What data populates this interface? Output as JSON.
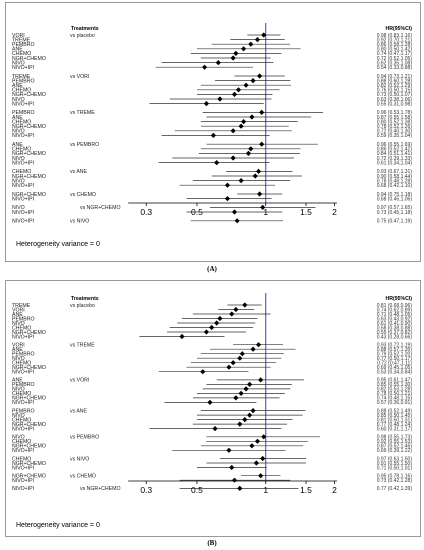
{
  "chart_data": [
    {
      "type": "forest",
      "panel_label": "(A)",
      "header_left": "Treatments",
      "header_right": "HR(95%CI)",
      "footer": "Heterogeneity variance = 0",
      "x_scale": "log",
      "xlim": [
        0.2,
        2.2
      ],
      "x_ticks": [
        "0.3",
        "0.5",
        "1",
        "1.5",
        "2"
      ],
      "reference_line": 1,
      "groups": [
        {
          "comparator": "vs placebo",
          "rows": [
            {
              "label": "VORI",
              "hr": 0.98,
              "lo": 0.83,
              "hi": 1.16,
              "text": "0.98 (0.83,1.16)"
            },
            {
              "label": "TREME",
              "hr": 0.92,
              "lo": 0.7,
              "hi": 1.21,
              "text": "0.92 (0.70,1.21)"
            },
            {
              "label": "PEMBRO",
              "hr": 0.86,
              "lo": 0.58,
              "hi": 1.28,
              "text": "0.86 (0.58,1.28)"
            },
            {
              "label": "ANE",
              "hr": 0.8,
              "lo": 0.5,
              "hi": 1.42,
              "text": "0.80 (0.50,1.42)"
            },
            {
              "label": "CHEMO",
              "hr": 0.74,
              "lo": 0.47,
              "hi": 1.17,
              "text": "0.74 (0.47,1.17)"
            },
            {
              "label": "NGR+CHEMO",
              "hr": 0.72,
              "lo": 0.52,
              "hi": 1.05,
              "text": "0.72 (0.52,1.05)"
            },
            {
              "label": "NIVO",
              "hr": 0.62,
              "lo": 0.35,
              "hi": 1.08,
              "text": "0.62 (0.35,1.08)"
            },
            {
              "label": "NIVO+IPI",
              "hr": 0.54,
              "lo": 0.33,
              "hi": 0.88,
              "text": "0.54 (0.33,0.88)"
            }
          ]
        },
        {
          "comparator": "vs VORI",
          "rows": [
            {
              "label": "TREME",
              "hr": 0.94,
              "lo": 0.73,
              "hi": 1.21,
              "text": "0.94 (0.73,1.21)"
            },
            {
              "label": "PEMBRO",
              "hr": 0.88,
              "lo": 0.6,
              "hi": 1.28,
              "text": "0.88 (0.60,1.28)"
            },
            {
              "label": "ANE",
              "hr": 0.82,
              "lo": 0.52,
              "hi": 1.29,
              "text": "0.82 (0.52,1.29)"
            },
            {
              "label": "CHEMO",
              "hr": 0.76,
              "lo": 0.5,
              "hi": 1.15,
              "text": "0.76 (0.50,1.15)"
            },
            {
              "label": "NGR+CHEMO",
              "hr": 0.73,
              "lo": 0.5,
              "hi": 1.07,
              "text": "0.73 (0.50,1.07)"
            },
            {
              "label": "NIVO",
              "hr": 0.63,
              "lo": 0.38,
              "hi": 1.06,
              "text": "0.63 (0.38,1.06)"
            },
            {
              "label": "NIVO+IPI",
              "hr": 0.55,
              "lo": 0.31,
              "hi": 0.98,
              "text": "0.55 (0.31,0.98)"
            }
          ]
        },
        {
          "comparator": "vs TREME",
          "rows": [
            {
              "label": "PEMBRO",
              "hr": 0.96,
              "lo": 0.53,
              "hi": 1.78,
              "text": "0.96 (0.53,1.78)"
            },
            {
              "label": "ANE",
              "hr": 0.87,
              "lo": 0.55,
              "hi": 1.58,
              "text": "0.87 (0.55,1.58)"
            },
            {
              "label": "CHEMO",
              "hr": 0.8,
              "lo": 0.52,
              "hi": 1.38,
              "text": "0.80 (0.52,1.38)"
            },
            {
              "label": "NGR+CHEMO",
              "hr": 0.78,
              "lo": 0.52,
              "hi": 1.26,
              "text": "0.78 (0.52,1.26)"
            },
            {
              "label": "NIVO",
              "hr": 0.72,
              "lo": 0.4,
              "hi": 1.3,
              "text": "0.72 (0.40,1.30)"
            },
            {
              "label": "NIVO+IPI",
              "hr": 0.59,
              "lo": 0.35,
              "hi": 1.04,
              "text": "0.59 (0.35,1.04)"
            }
          ]
        },
        {
          "comparator": "vs PEMBRO",
          "rows": [
            {
              "label": "ANE",
              "hr": 0.96,
              "lo": 0.55,
              "hi": 1.69,
              "text": "0.96 (0.55,1.69)"
            },
            {
              "label": "CHEMO",
              "hr": 0.86,
              "lo": 0.52,
              "hi": 1.42,
              "text": "0.86 (0.52,1.42)"
            },
            {
              "label": "NGR+CHEMO",
              "hr": 0.84,
              "lo": 0.51,
              "hi": 1.41,
              "text": "0.84 (0.51,1.41)"
            },
            {
              "label": "NIVO",
              "hr": 0.72,
              "lo": 0.39,
              "hi": 1.33,
              "text": "0.72 (0.39,1.33)"
            },
            {
              "label": "NIVO+IPI",
              "hr": 0.61,
              "lo": 0.34,
              "hi": 1.04,
              "text": "0.61 (0.34,1.04)"
            }
          ]
        },
        {
          "comparator": "vs ANE",
          "rows": [
            {
              "label": "CHEMO",
              "hr": 0.93,
              "lo": 0.67,
              "hi": 1.31,
              "text": "0.93 (0.67,1.31)"
            },
            {
              "label": "NGR+CHEMO",
              "hr": 0.9,
              "lo": 0.58,
              "hi": 1.44,
              "text": "0.90 (0.58,1.44)"
            },
            {
              "label": "NIVO",
              "hr": 0.78,
              "lo": 0.48,
              "hi": 1.28,
              "text": "0.78 (0.48,1.28)"
            },
            {
              "label": "NIVO+IPI",
              "hr": 0.68,
              "lo": 0.42,
              "hi": 1.1,
              "text": "0.68 (0.42,1.10)"
            }
          ]
        },
        {
          "comparator": "vs CHEMO",
          "rows": [
            {
              "label": "NGR+CHEMO",
              "hr": 0.94,
              "lo": 0.75,
              "hi": 1.18,
              "text": "0.94 (0.75,1.18)"
            },
            {
              "label": "NIVO+IPI",
              "hr": 0.68,
              "lo": 0.45,
              "hi": 1.06,
              "text": "0.68 (0.45,1.06)"
            }
          ]
        },
        {
          "comparator": "vs NGR+CHEMO",
          "rows": [
            {
              "label": "NIVO",
              "hr": 0.97,
              "lo": 0.57,
              "hi": 1.65,
              "text": "0.97 (0.57,1.65)"
            },
            {
              "label": "NIVO+IPI",
              "hr": 0.73,
              "lo": 0.45,
              "hi": 1.18,
              "text": "0.73 (0.45,1.18)"
            }
          ]
        },
        {
          "comparator": "vs NIVO",
          "rows": [
            {
              "label": "NIVO+IPI",
              "hr": 0.75,
              "lo": 0.47,
              "hi": 1.19,
              "text": "0.75 (0.47,1.19)"
            }
          ]
        }
      ]
    },
    {
      "type": "forest",
      "panel_label": "(B)",
      "header_left": "Treatments",
      "header_right": "HR(95%CI)",
      "footer": "Heterogeneity variance = 0",
      "x_scale": "log",
      "xlim": [
        0.2,
        2.2
      ],
      "x_ticks": [
        "0.3",
        "0.5",
        "1",
        "1.5",
        "2"
      ],
      "reference_line": 1,
      "groups": [
        {
          "comparator": "vs placebo",
          "rows": [
            {
              "label": "TREME",
              "hr": 0.81,
              "lo": 0.68,
              "hi": 0.96,
              "text": "0.81 (0.68,0.96)"
            },
            {
              "label": "VORI",
              "hr": 0.74,
              "lo": 0.62,
              "hi": 0.89,
              "text": "0.74 (0.62,0.89)"
            },
            {
              "label": "ANE",
              "hr": 0.71,
              "lo": 0.48,
              "hi": 1.05,
              "text": "0.71 (0.48,1.05)"
            },
            {
              "label": "PEMBRO",
              "hr": 0.63,
              "lo": 0.43,
              "hi": 0.92,
              "text": "0.63 (0.43,0.92)"
            },
            {
              "label": "NIVO",
              "hr": 0.61,
              "lo": 0.41,
              "hi": 0.9,
              "text": "0.61 (0.41,0.90)"
            },
            {
              "label": "CHEMO",
              "hr": 0.58,
              "lo": 0.38,
              "hi": 0.88,
              "text": "0.58 (0.38,0.88)"
            },
            {
              "label": "NGR+CHEMO",
              "hr": 0.55,
              "lo": 0.37,
              "hi": 0.82,
              "text": "0.55 (0.37,0.82)"
            },
            {
              "label": "NIVO+IPI",
              "hr": 0.43,
              "lo": 0.28,
              "hi": 0.66,
              "text": "0.43 (0.28,0.66)"
            }
          ]
        },
        {
          "comparator": "vs TREME",
          "rows": [
            {
              "label": "VORI",
              "hr": 0.93,
              "lo": 0.72,
              "hi": 1.19,
              "text": "0.93 (0.72,1.19)"
            },
            {
              "label": "ANE",
              "hr": 0.88,
              "lo": 0.57,
              "hi": 1.35,
              "text": "0.88 (0.57,1.35)"
            },
            {
              "label": "PEMBRO",
              "hr": 0.79,
              "lo": 0.52,
              "hi": 1.2,
              "text": "0.79 (0.52,1.20)"
            },
            {
              "label": "NIVO",
              "hr": 0.77,
              "lo": 0.5,
              "hi": 1.17,
              "text": "0.77 (0.50,1.17)"
            },
            {
              "label": "CHEMO",
              "hr": 0.72,
              "lo": 0.47,
              "hi": 1.11,
              "text": "0.72 (0.47,1.11)"
            },
            {
              "label": "NGR+CHEMO",
              "hr": 0.69,
              "lo": 0.45,
              "hi": 1.05,
              "text": "0.69 (0.45,1.05)"
            },
            {
              "label": "NIVO+IPI",
              "hr": 0.53,
              "lo": 0.34,
              "hi": 0.84,
              "text": "0.53 (0.34,0.84)"
            }
          ]
        },
        {
          "comparator": "vs VORI",
          "rows": [
            {
              "label": "ANE",
              "hr": 0.95,
              "lo": 0.61,
              "hi": 1.47,
              "text": "0.95 (0.61,1.47)"
            },
            {
              "label": "PEMBRO",
              "hr": 0.85,
              "lo": 0.55,
              "hi": 1.3,
              "text": "0.85 (0.55,1.30)"
            },
            {
              "label": "NIVO",
              "hr": 0.82,
              "lo": 0.53,
              "hi": 1.28,
              "text": "0.82 (0.53,1.28)"
            },
            {
              "label": "CHEMO",
              "hr": 0.78,
              "lo": 0.5,
              "hi": 1.21,
              "text": "0.78 (0.50,1.21)"
            },
            {
              "label": "NGR+CHEMO",
              "hr": 0.74,
              "lo": 0.48,
              "hi": 1.15,
              "text": "0.74 (0.48,1.15)"
            },
            {
              "label": "NIVO+IPI",
              "hr": 0.57,
              "lo": 0.36,
              "hi": 0.91,
              "text": "0.57 (0.36,0.91)"
            }
          ]
        },
        {
          "comparator": "vs ANE",
          "rows": [
            {
              "label": "PEMBRO",
              "hr": 0.88,
              "lo": 0.52,
              "hi": 1.49,
              "text": "0.88 (0.52,1.49)"
            },
            {
              "label": "NIVO",
              "hr": 0.85,
              "lo": 0.5,
              "hi": 1.45,
              "text": "0.85 (0.50,1.45)"
            },
            {
              "label": "CHEMO",
              "hr": 0.81,
              "lo": 0.5,
              "hi": 1.31,
              "text": "0.81 (0.50,1.31)"
            },
            {
              "label": "NGR+CHEMO",
              "hr": 0.77,
              "lo": 0.48,
              "hi": 1.24,
              "text": "0.77 (0.48,1.24)"
            },
            {
              "label": "NIVO+IPI",
              "hr": 0.6,
              "lo": 0.31,
              "hi": 1.17,
              "text": "0.60 (0.31,1.17)"
            }
          ]
        },
        {
          "comparator": "vs PEMBRO",
          "rows": [
            {
              "label": "NIVO",
              "hr": 0.98,
              "lo": 0.55,
              "hi": 1.73,
              "text": "0.98 (0.55,1.73)"
            },
            {
              "label": "CHEMO",
              "hr": 0.92,
              "lo": 0.55,
              "hi": 1.53,
              "text": "0.92 (0.55,1.53)"
            },
            {
              "label": "NGR+CHEMO",
              "hr": 0.87,
              "lo": 0.52,
              "hi": 1.46,
              "text": "0.87 (0.52,1.46)"
            },
            {
              "label": "NIVO+IPI",
              "hr": 0.69,
              "lo": 0.39,
              "hi": 1.22,
              "text": "0.69 (0.39,1.22)"
            }
          ]
        },
        {
          "comparator": "vs NIVO",
          "rows": [
            {
              "label": "CHEMO",
              "hr": 0.97,
              "lo": 0.63,
              "hi": 1.5,
              "text": "0.97 (0.63,1.50)"
            },
            {
              "label": "NGR+CHEMO",
              "hr": 0.91,
              "lo": 0.55,
              "hi": 1.5,
              "text": "0.91 (0.55,1.50)"
            },
            {
              "label": "NIVO+IPI",
              "hr": 0.71,
              "lo": 0.5,
              "hi": 1.01,
              "text": "0.71 (0.50,1.01)"
            }
          ]
        },
        {
          "comparator": "vs CHEMO",
          "rows": [
            {
              "label": "NGR+CHEMO",
              "hr": 0.95,
              "lo": 0.78,
              "hi": 1.16,
              "text": "0.95 (0.78,1.16)"
            },
            {
              "label": "NIVO+IPI",
              "hr": 0.73,
              "lo": 0.42,
              "hi": 1.28,
              "text": "0.73 (0.42,1.28)"
            }
          ]
        },
        {
          "comparator": "vs NGR+CHEMO",
          "rows": [
            {
              "label": "NIVO+IPI",
              "hr": 0.77,
              "lo": 0.42,
              "hi": 1.39,
              "text": "0.77 (0.42,1.39)"
            }
          ]
        }
      ]
    }
  ],
  "colors": {
    "reference_line": "#3a3ad6",
    "marker": "#000000",
    "whisker": "#333333",
    "row_text": "#222222",
    "value_text": "#333333"
  }
}
